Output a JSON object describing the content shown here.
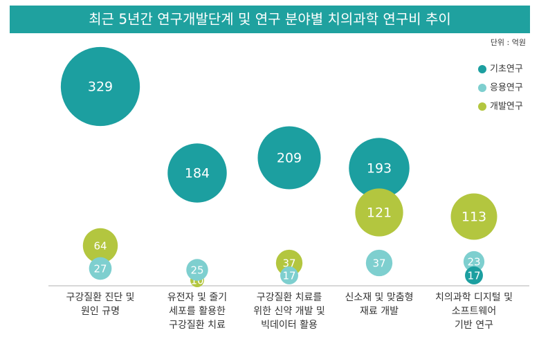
{
  "chart_data": {
    "type": "bubble",
    "title": "최근 5년간 연구개발단계 및 연구 분야별 치의과학 연구비 추이",
    "unit": "단위 : 억원",
    "categories": [
      "구강질환 진단 및\n원인 규명",
      "유전자 및 줄기\n세포를 활용한\n구강질환 치료",
      "구강질환 치료를\n위한 신약 개발 및\n빅데이터 활용",
      "신소재 및 맞춤형\n재료 개발",
      "치의과학 디지털 및\n소프트웨어\n기반 연구"
    ],
    "series": [
      {
        "name": "기초연구",
        "color": "#1c9fa0",
        "values": [
          329,
          184,
          209,
          193,
          17
        ]
      },
      {
        "name": "응용연구",
        "color": "#7ecfcf",
        "values": [
          27,
          25,
          17,
          37,
          23
        ]
      },
      {
        "name": "개발연구",
        "color": "#b3c63f",
        "values": [
          64,
          10,
          37,
          121,
          113
        ]
      }
    ]
  }
}
